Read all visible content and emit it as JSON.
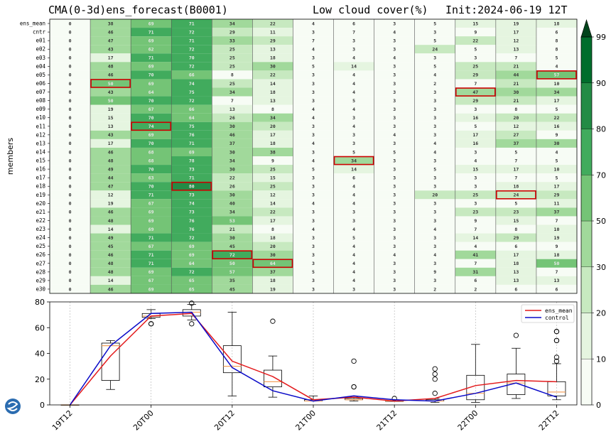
{
  "header": {
    "title_left": "CMA(0-3d)ens_forecast(B0001)",
    "title_mid": "Low cloud cover(%)",
    "title_right": "Init:2024-06-19 12T",
    "ylabel": "members"
  },
  "colors": {
    "scale": [
      "#f7fcf5",
      "#e5f5e0",
      "#c7e9c0",
      "#a1d99b",
      "#74c476",
      "#41ab5d",
      "#238b45",
      "#006d2c",
      "#00441b"
    ],
    "highlight": "#cc0000",
    "ens_mean_line": "#e31a1c",
    "control_line": "#0a0ac8",
    "median": "#f4a460"
  },
  "chart_data": [
    {
      "type": "heatmap",
      "title": "CMA(0-3d)ens_forecast(B0001)  Low cloud cover(%)  Init:2024-06-19 12T",
      "ylabel": "members",
      "rows": [
        "ens_mean",
        "cntr",
        "e01",
        "e02",
        "e03",
        "e04",
        "e05",
        "e06",
        "e07",
        "e08",
        "e09",
        "e10",
        "e11",
        "e12",
        "e13",
        "e14",
        "e15",
        "e16",
        "e17",
        "e18",
        "e19",
        "e20",
        "e21",
        "e22",
        "e23",
        "e24",
        "e25",
        "e26",
        "e27",
        "e28",
        "e29",
        "e30"
      ],
      "columns": 13,
      "values": [
        [
          0,
          38,
          69,
          71,
          34,
          22,
          4,
          6,
          3,
          5,
          15,
          19,
          18
        ],
        [
          0,
          46,
          71,
          72,
          29,
          11,
          3,
          7,
          4,
          3,
          9,
          17,
          6
        ],
        [
          0,
          47,
          69,
          71,
          33,
          29,
          7,
          3,
          3,
          5,
          22,
          12,
          8
        ],
        [
          0,
          43,
          62,
          72,
          25,
          13,
          4,
          3,
          3,
          24,
          5,
          13,
          8
        ],
        [
          0,
          17,
          71,
          70,
          25,
          18,
          3,
          4,
          4,
          3,
          3,
          7,
          5
        ],
        [
          0,
          48,
          69,
          72,
          25,
          30,
          5,
          14,
          3,
          5,
          25,
          21,
          4
        ],
        [
          0,
          46,
          70,
          66,
          8,
          22,
          3,
          4,
          3,
          4,
          29,
          44,
          57
        ],
        [
          0,
          50,
          69,
          74,
          25,
          14,
          3,
          4,
          3,
          2,
          7,
          21,
          10
        ],
        [
          0,
          43,
          64,
          75,
          34,
          18,
          3,
          4,
          3,
          3,
          47,
          30,
          34
        ],
        [
          0,
          50,
          70,
          72,
          7,
          13,
          3,
          5,
          3,
          3,
          29,
          21,
          17
        ],
        [
          0,
          19,
          67,
          66,
          13,
          8,
          4,
          4,
          3,
          3,
          3,
          8,
          5
        ],
        [
          0,
          15,
          70,
          64,
          26,
          34,
          4,
          3,
          3,
          3,
          16,
          20,
          22
        ],
        [
          0,
          13,
          74,
          75,
          30,
          20,
          3,
          4,
          3,
          3,
          5,
          12,
          16
        ],
        [
          0,
          43,
          69,
          76,
          46,
          17,
          3,
          3,
          4,
          3,
          17,
          27,
          9
        ],
        [
          0,
          17,
          70,
          71,
          37,
          18,
          4,
          3,
          3,
          4,
          16,
          37,
          30
        ],
        [
          0,
          46,
          68,
          69,
          30,
          38,
          3,
          5,
          5,
          4,
          3,
          5,
          4
        ],
        [
          0,
          48,
          68,
          78,
          34,
          9,
          4,
          34,
          3,
          3,
          4,
          7,
          5
        ],
        [
          0,
          49,
          70,
          73,
          30,
          25,
          5,
          14,
          3,
          5,
          15,
          17,
          10
        ],
        [
          0,
          44,
          63,
          71,
          22,
          15,
          3,
          6,
          3,
          3,
          3,
          7,
          5
        ],
        [
          0,
          47,
          70,
          80,
          26,
          25,
          3,
          4,
          3,
          3,
          3,
          18,
          17
        ],
        [
          0,
          12,
          71,
          73,
          30,
          12,
          3,
          4,
          3,
          20,
          25,
          24,
          29
        ],
        [
          0,
          19,
          67,
          74,
          40,
          14,
          4,
          4,
          3,
          3,
          3,
          5,
          11
        ],
        [
          0,
          46,
          69,
          73,
          34,
          22,
          3,
          3,
          3,
          3,
          23,
          23,
          37
        ],
        [
          0,
          48,
          69,
          76,
          53,
          17,
          3,
          3,
          3,
          3,
          9,
          15,
          7
        ],
        [
          0,
          14,
          69,
          76,
          21,
          8,
          4,
          4,
          3,
          4,
          7,
          8,
          10
        ],
        [
          0,
          49,
          71,
          72,
          30,
          18,
          3,
          5,
          3,
          3,
          14,
          29,
          19
        ],
        [
          0,
          45,
          67,
          69,
          45,
          20,
          3,
          4,
          3,
          3,
          4,
          6,
          9
        ],
        [
          0,
          46,
          71,
          69,
          72,
          30,
          3,
          4,
          4,
          4,
          41,
          17,
          18
        ],
        [
          0,
          48,
          71,
          64,
          50,
          64,
          3,
          4,
          3,
          3,
          7,
          18,
          50
        ],
        [
          0,
          48,
          69,
          72,
          57,
          37,
          5,
          4,
          3,
          9,
          31,
          13,
          7
        ],
        [
          0,
          14,
          67,
          65,
          35,
          18,
          3,
          4,
          3,
          3,
          6,
          13,
          13
        ],
        [
          0,
          46,
          69,
          65,
          45,
          19,
          3,
          3,
          3,
          2,
          2,
          6,
          6
        ]
      ],
      "highlighted_cells": [
        {
          "row": "e06",
          "col": 1
        },
        {
          "row": "e11",
          "col": 2
        },
        {
          "row": "e18",
          "col": 3
        },
        {
          "row": "e26",
          "col": 4
        },
        {
          "row": "e27",
          "col": 5
        },
        {
          "row": "e15",
          "col": 7
        },
        {
          "row": "e07",
          "col": 10
        },
        {
          "row": "e19",
          "col": 11
        },
        {
          "row": "e05",
          "col": 12
        }
      ],
      "colorbar": {
        "ticks": [
          0,
          10,
          20,
          30,
          50,
          70,
          80,
          90,
          99
        ],
        "ylim": [
          0,
          99
        ],
        "extend": "max"
      }
    },
    {
      "type": "line",
      "xlabels": [
        "19T12",
        "20T00",
        "20T12",
        "21T00",
        "21T12",
        "22T00",
        "22T12"
      ],
      "x": [
        0,
        1,
        2,
        3,
        4,
        5,
        6,
        7,
        8,
        9,
        10,
        11,
        12
      ],
      "ylim": [
        0,
        80
      ],
      "yticks": [
        0,
        20,
        40,
        60,
        80
      ],
      "grid": "x",
      "legend_position": "top-right",
      "series": [
        {
          "name": "ens_mean",
          "values": [
            0,
            38,
            69,
            71,
            34,
            22,
            4,
            6,
            3,
            5,
            15,
            19,
            18
          ]
        },
        {
          "name": "control",
          "values": [
            0,
            46,
            71,
            72,
            29,
            11,
            3,
            7,
            4,
            3,
            9,
            17,
            6
          ]
        }
      ],
      "boxes": [
        {
          "q1": 0,
          "median": 0,
          "q3": 0,
          "whislo": 0,
          "whishi": 0,
          "fliers": []
        },
        {
          "q1": 19,
          "median": 46,
          "q3": 48,
          "whislo": 12,
          "whishi": 50,
          "fliers": []
        },
        {
          "q1": 68,
          "median": 69,
          "q3": 71,
          "whislo": 67,
          "whishi": 74,
          "fliers": [
            63,
            63
          ]
        },
        {
          "q1": 69,
          "median": 72,
          "q3": 74,
          "whislo": 66,
          "whishi": 78,
          "fliers": [
            63,
            79
          ]
        },
        {
          "q1": 25,
          "median": 30,
          "q3": 46,
          "whislo": 7,
          "whishi": 72,
          "fliers": []
        },
        {
          "q1": 14,
          "median": 18,
          "q3": 27,
          "whislo": 6,
          "whishi": 38,
          "fliers": [
            65
          ]
        },
        {
          "q1": 3,
          "median": 3,
          "q3": 4,
          "whislo": 3,
          "whishi": 7,
          "fliers": []
        },
        {
          "q1": 4,
          "median": 4,
          "q3": 5,
          "whislo": 3,
          "whishi": 6,
          "fliers": [
            14,
            14,
            34
          ]
        },
        {
          "q1": 3,
          "median": 3,
          "q3": 3,
          "whislo": 3,
          "whishi": 4,
          "fliers": [
            5
          ]
        },
        {
          "q1": 3,
          "median": 3,
          "q3": 4,
          "whislo": 2,
          "whishi": 5,
          "fliers": [
            9,
            20,
            24,
            28
          ]
        },
        {
          "q1": 4,
          "median": 9,
          "q3": 23,
          "whislo": 2,
          "whishi": 47,
          "fliers": []
        },
        {
          "q1": 8,
          "median": 17,
          "q3": 24,
          "whislo": 5,
          "whishi": 44,
          "fliers": [
            54
          ]
        },
        {
          "q1": 7,
          "median": 10,
          "q3": 18,
          "whislo": 4,
          "whishi": 32,
          "fliers": [
            34,
            37,
            50,
            50,
            57,
            57
          ]
        }
      ]
    }
  ]
}
